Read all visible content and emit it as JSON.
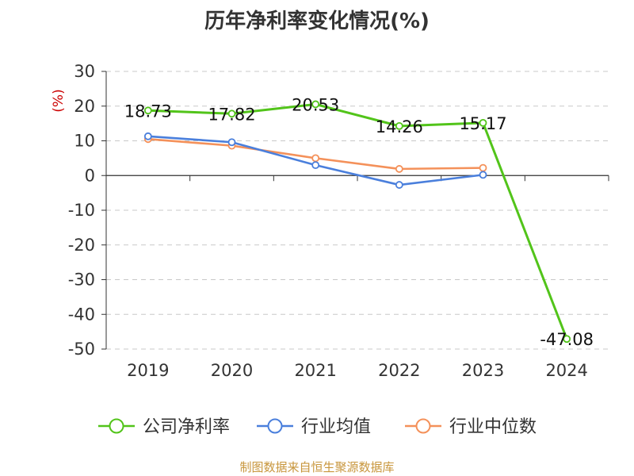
{
  "chart_data": {
    "type": "line",
    "title": "历年净利率变化情况(%)",
    "ylabel": "(%)",
    "categories": [
      "2019",
      "2020",
      "2021",
      "2022",
      "2023",
      "2024"
    ],
    "ylim": [
      -50,
      30
    ],
    "yticks": [
      "30",
      "20",
      "10",
      "0",
      "-10",
      "-20",
      "-30",
      "-40",
      "-50"
    ],
    "grid": true,
    "legend_position": "bottom",
    "series": [
      {
        "name": "公司净利率",
        "color": "#52c41a",
        "values": [
          18.73,
          17.82,
          20.53,
          14.26,
          15.17,
          -47.08
        ],
        "labels": [
          "18.73",
          "17.82",
          "20.53",
          "14.26",
          "15.17",
          "-47.08"
        ]
      },
      {
        "name": "行业均值",
        "color": "#4a7fdc",
        "values": [
          11.3,
          9.6,
          3.0,
          -2.7,
          0.2,
          null
        ]
      },
      {
        "name": "行业中位数",
        "color": "#f4915a",
        "values": [
          10.5,
          8.6,
          5.0,
          1.9,
          2.2,
          null
        ]
      }
    ],
    "source": "制图数据来自恒生聚源数据库"
  }
}
